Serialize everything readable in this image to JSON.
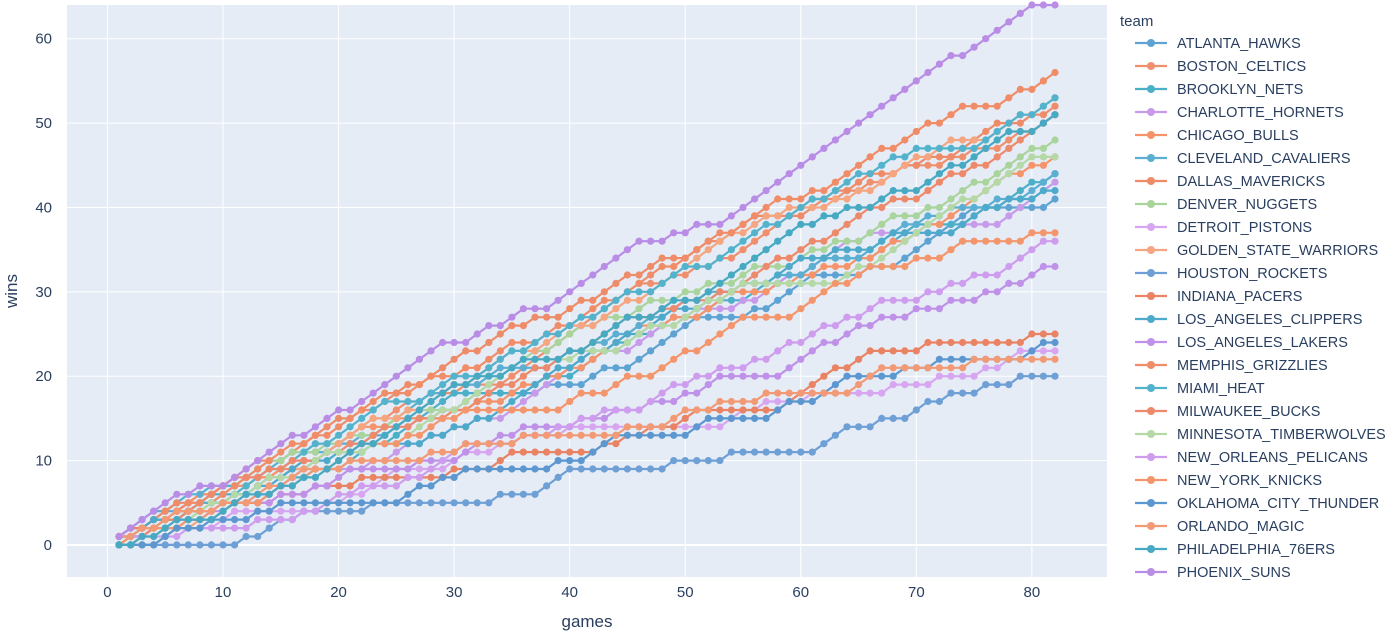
{
  "chart_data": {
    "type": "line",
    "xlabel": "games",
    "ylabel": "wins",
    "xlim": [
      -3.5,
      86.5
    ],
    "ylim": [
      -3.8,
      64
    ],
    "x_ticks": [
      0,
      10,
      20,
      30,
      40,
      50,
      60,
      70,
      80
    ],
    "y_ticks": [
      0,
      10,
      20,
      30,
      40,
      50,
      60
    ],
    "grid": true,
    "legend_title": "team",
    "legend_position": "right",
    "colors": {
      "background": "#E5ECF6",
      "grid": "#ffffff",
      "text": "#2a3f5f"
    },
    "games": 82,
    "series": [
      {
        "name": "ATLANTA_HAWKS",
        "color": "#5FA3D3",
        "final_wins": 41
      },
      {
        "name": "BOSTON_CELTICS",
        "color": "#EF8F6D",
        "final_wins": 51
      },
      {
        "name": "BROOKLYN_NETS",
        "color": "#4BB0C7",
        "final_wins": 44
      },
      {
        "name": "CHARLOTTE_HORNETS",
        "color": "#C79BEA",
        "final_wins": 43
      },
      {
        "name": "CHICAGO_BULLS",
        "color": "#F5936A",
        "final_wins": 46
      },
      {
        "name": "CLEVELAND_CAVALIERS",
        "color": "#5AAFD2",
        "final_wins": 44
      },
      {
        "name": "DALLAS_MAVERICKS",
        "color": "#EE8B68",
        "final_wins": 52
      },
      {
        "name": "DENVER_NUGGETS",
        "color": "#A9D49C",
        "final_wins": 48
      },
      {
        "name": "DETROIT_PISTONS",
        "color": "#D8A6F0",
        "final_wins": 23
      },
      {
        "name": "GOLDEN_STATE_WARRIORS",
        "color": "#F5A57F",
        "final_wins": 53
      },
      {
        "name": "HOUSTON_ROCKETS",
        "color": "#6E9FD5",
        "final_wins": 20
      },
      {
        "name": "INDIANA_PACERS",
        "color": "#E98363",
        "final_wins": 25
      },
      {
        "name": "LOS_ANGELES_CLIPPERS",
        "color": "#4EAACB",
        "final_wins": 42
      },
      {
        "name": "LOS_ANGELES_LAKERS",
        "color": "#C091E8",
        "final_wins": 33
      },
      {
        "name": "MEMPHIS_GRIZZLIES",
        "color": "#F08D68",
        "final_wins": 56
      },
      {
        "name": "MIAMI_HEAT",
        "color": "#54B3CC",
        "final_wins": 53
      },
      {
        "name": "MILWAUKEE_BUCKS",
        "color": "#EE8A6C",
        "final_wins": 51
      },
      {
        "name": "MINNESOTA_TIMBERWOLVES",
        "color": "#B4D9A6",
        "final_wins": 46
      },
      {
        "name": "NEW_ORLEANS_PELICANS",
        "color": "#CF9DEE",
        "final_wins": 36
      },
      {
        "name": "NEW_YORK_KNICKS",
        "color": "#F4966D",
        "final_wins": 37
      },
      {
        "name": "OKLAHOMA_CITY_THUNDER",
        "color": "#5C97CF",
        "final_wins": 24
      },
      {
        "name": "ORLANDO_MAGIC",
        "color": "#F29A75",
        "final_wins": 22
      },
      {
        "name": "PHILADELPHIA_76ERS",
        "color": "#47A9C2",
        "final_wins": 51
      },
      {
        "name": "PHOENIX_SUNS",
        "color": "#B98CE6",
        "final_wins": 64
      }
    ]
  }
}
